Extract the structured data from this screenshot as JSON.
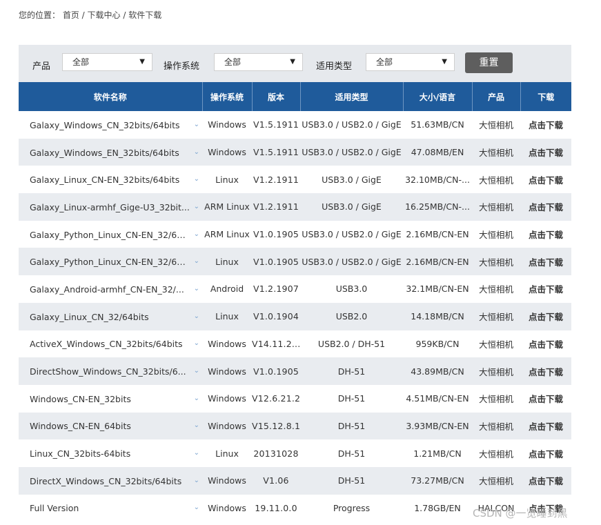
{
  "breadcrumb": {
    "label": "您的位置：",
    "path": "首页 / 下载中心 / 软件下载"
  },
  "filters": {
    "product_label": "产品",
    "product_value": "全部",
    "os_label": "操作系统",
    "os_value": "全部",
    "type_label": "适用类型",
    "type_value": "全部",
    "reset_label": "重置"
  },
  "table": {
    "headers": [
      "软件名称",
      "操作系统",
      "版本",
      "适用类型",
      "大小/语言",
      "产品",
      "下载"
    ],
    "rows": [
      {
        "name": "Galaxy_Windows_CN_32bits/64bits",
        "os": "Windows",
        "version": "V1.5.1911",
        "type": "USB3.0 / USB2.0 / GigE",
        "size": "51.63MB/CN",
        "product": "大恒相机",
        "download": "点击下载"
      },
      {
        "name": "Galaxy_Windows_EN_32bits/64bits",
        "os": "Windows",
        "version": "V1.5.1911",
        "type": "USB3.0 / USB2.0 / GigE",
        "size": "47.08MB/EN",
        "product": "大恒相机",
        "download": "点击下载"
      },
      {
        "name": "Galaxy_Linux_CN-EN_32bits/64bits",
        "os": "Linux",
        "version": "V1.2.1911",
        "type": "USB3.0 / GigE",
        "size": "32.10MB/CN-...",
        "product": "大恒相机",
        "download": "点击下载"
      },
      {
        "name": "Galaxy_Linux-armhf_Gige-U3_32bit...",
        "os": "ARM Linux",
        "version": "V1.2.1911",
        "type": "USB3.0 / GigE",
        "size": "16.25MB/CN-...",
        "product": "大恒相机",
        "download": "点击下载"
      },
      {
        "name": "Galaxy_Python_Linux_CN-EN_32/64...",
        "os": "ARM Linux",
        "version": "V1.0.1905",
        "type": "USB3.0 / USB2.0 / GigE",
        "size": "2.16MB/CN-EN",
        "product": "大恒相机",
        "download": "点击下载"
      },
      {
        "name": "Galaxy_Python_Linux_CN-EN_32/64...",
        "os": "Linux",
        "version": "V1.0.1905",
        "type": "USB3.0 / USB2.0 / GigE",
        "size": "2.16MB/CN-EN",
        "product": "大恒相机",
        "download": "点击下载"
      },
      {
        "name": "Galaxy_Android-armhf_CN-EN_32/...",
        "os": "Android",
        "version": "V1.2.1907",
        "type": "USB3.0",
        "size": "32.1MB/CN-EN",
        "product": "大恒相机",
        "download": "点击下载"
      },
      {
        "name": "Galaxy_Linux_CN_32/64bits",
        "os": "Linux",
        "version": "V1.0.1904",
        "type": "USB2.0",
        "size": "14.18MB/CN",
        "product": "大恒相机",
        "download": "点击下载"
      },
      {
        "name": "ActiveX_Windows_CN_32bits/64bits",
        "os": "Windows",
        "version": "V14.11.2...",
        "type": "USB2.0 / DH-51",
        "size": "959KB/CN",
        "product": "大恒相机",
        "download": "点击下载"
      },
      {
        "name": "DirectShow_Windows_CN_32bits/6...",
        "os": "Windows",
        "version": "V1.0.1905",
        "type": "DH-51",
        "size": "43.89MB/CN",
        "product": "大恒相机",
        "download": "点击下载"
      },
      {
        "name": "Windows_CN-EN_32bits",
        "os": "Windows",
        "version": "V12.6.21.2",
        "type": "DH-51",
        "size": "4.51MB/CN-EN",
        "product": "大恒相机",
        "download": "点击下载"
      },
      {
        "name": "Windows_CN-EN_64bits",
        "os": "Windows",
        "version": "V15.12.8.1",
        "type": "DH-51",
        "size": "3.93MB/CN-EN",
        "product": "大恒相机",
        "download": "点击下载"
      },
      {
        "name": "Linux_CN_32bits-64bits",
        "os": "Linux",
        "version": "20131028",
        "type": "DH-51",
        "size": "1.21MB/CN",
        "product": "大恒相机",
        "download": "点击下载"
      },
      {
        "name": "DirectX_Windows_CN_32bits/64bits",
        "os": "Windows",
        "version": "V1.06",
        "type": "DH-51",
        "size": "73.27MB/CN",
        "product": "大恒相机",
        "download": "点击下载"
      },
      {
        "name": "Full Version",
        "os": "Windows",
        "version": "19.11.0.0",
        "type": "Progress",
        "size": "1.78GB/EN",
        "product": "HALCON",
        "download": "点击下载"
      }
    ]
  },
  "watermark": "CSDN @一览睡到黑",
  "icons": {
    "select_arrow": "dropdown-arrow-icon",
    "row_chevron": "chevron-down-icon"
  },
  "colors": {
    "header_bg": "#1f5b9b",
    "link": "#1f5b9b",
    "filter_bg": "#e6e9ed",
    "reset_bg": "#5e5e5e",
    "row_alt": "#e9ecf0"
  }
}
